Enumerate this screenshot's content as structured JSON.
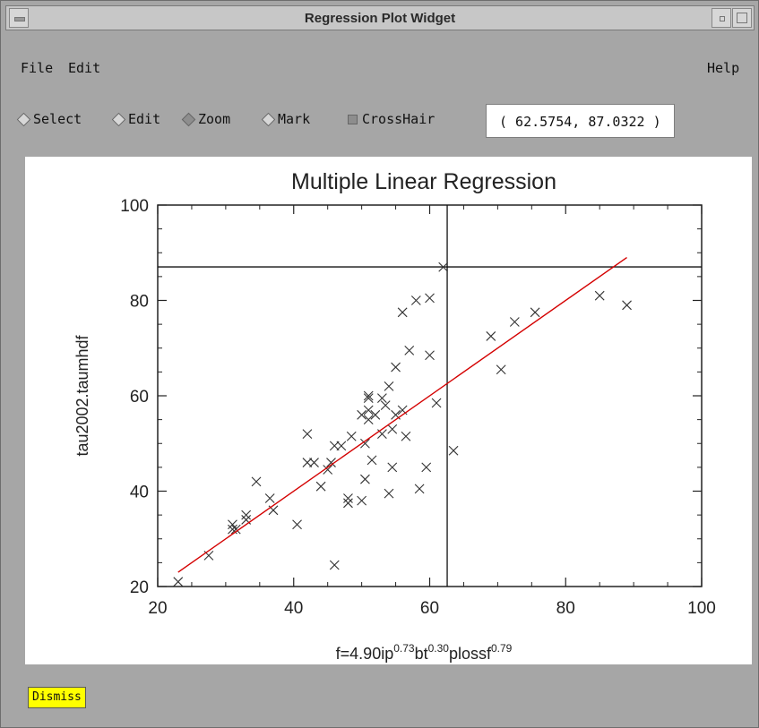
{
  "window": {
    "title": "Regression Plot Widget"
  },
  "menu": {
    "file": "File",
    "edit": "Edit",
    "help": "Help"
  },
  "toolbar": {
    "select": "Select",
    "edit": "Edit",
    "zoom": "Zoom",
    "mark": "Mark",
    "crosshair": "CrossHair",
    "coordinates": "( 62.5754, 87.0322 )",
    "selected_mode": "Zoom",
    "crosshair_checked": true
  },
  "bottom": {
    "dismiss": "Dismiss"
  },
  "chart_data": {
    "type": "scatter",
    "title": "Multiple Linear Regression",
    "ylabel": "tau2002.taumhdf",
    "xlabel": "f=4.90ip^0.73bt^0.30plossf^0.79",
    "xlabel_parts": {
      "base": "f=4.90ip",
      "e1": "0.73",
      "mid1": "bt",
      "e2": "0.30",
      "mid2": "plossf",
      "e3": "0.79"
    },
    "xlim": [
      20,
      100
    ],
    "ylim": [
      20,
      100
    ],
    "xticks": [
      20,
      40,
      60,
      80,
      100
    ],
    "yticks": [
      20,
      40,
      60,
      80,
      100
    ],
    "grid": false,
    "crosshair": {
      "x": 62.5754,
      "y": 87.0322
    },
    "fit_line": {
      "x": [
        23,
        89
      ],
      "y": [
        23,
        89
      ],
      "color": "#d40000"
    },
    "points": [
      [
        23,
        21
      ],
      [
        27.5,
        26.5
      ],
      [
        31,
        32
      ],
      [
        31,
        33
      ],
      [
        31.5,
        32
      ],
      [
        33,
        35
      ],
      [
        33,
        34
      ],
      [
        34.5,
        42
      ],
      [
        36.5,
        38.5
      ],
      [
        37,
        36
      ],
      [
        40.5,
        33
      ],
      [
        42,
        52
      ],
      [
        42,
        46
      ],
      [
        43,
        46
      ],
      [
        44,
        41
      ],
      [
        45,
        44.5
      ],
      [
        45.5,
        46
      ],
      [
        46,
        49.5
      ],
      [
        46,
        24.5
      ],
      [
        47,
        49.5
      ],
      [
        48,
        38.5
      ],
      [
        48,
        37.5
      ],
      [
        48.5,
        51.5
      ],
      [
        50,
        38
      ],
      [
        50,
        56
      ],
      [
        50.5,
        50
      ],
      [
        50.5,
        42.5
      ],
      [
        51,
        55
      ],
      [
        51,
        57
      ],
      [
        51,
        60
      ],
      [
        51,
        59.5
      ],
      [
        51.5,
        46.5
      ],
      [
        52,
        56
      ],
      [
        53,
        52
      ],
      [
        53,
        59.5
      ],
      [
        53.5,
        58
      ],
      [
        54,
        39.5
      ],
      [
        54,
        62
      ],
      [
        54.5,
        53
      ],
      [
        54.5,
        45
      ],
      [
        55,
        56
      ],
      [
        55,
        66
      ],
      [
        56,
        77.5
      ],
      [
        56,
        57
      ],
      [
        56.5,
        51.5
      ],
      [
        57,
        69.5
      ],
      [
        58,
        80
      ],
      [
        58.5,
        40.5
      ],
      [
        59.5,
        45
      ],
      [
        60,
        80.5
      ],
      [
        60,
        68.5
      ],
      [
        61,
        58.5
      ],
      [
        62,
        87
      ],
      [
        63.5,
        48.5
      ],
      [
        69,
        72.5
      ],
      [
        70.5,
        65.5
      ],
      [
        72.5,
        75.5
      ],
      [
        75.5,
        77.5
      ],
      [
        85,
        81
      ],
      [
        89,
        79
      ]
    ]
  }
}
